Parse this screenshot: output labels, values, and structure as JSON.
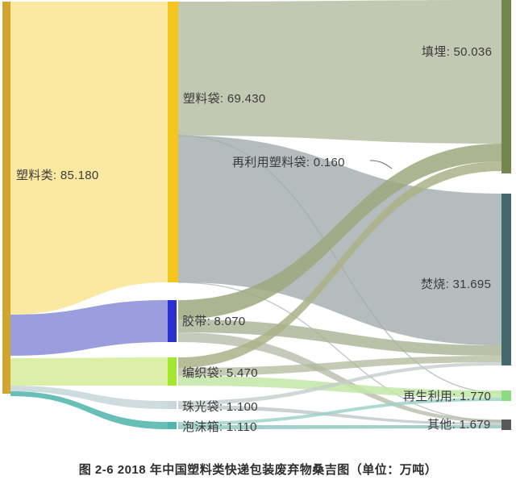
{
  "caption": "图 2-6 2018 年中国塑料类快递包装废弃物桑吉图（单位：万吨）",
  "chart_data": {
    "type": "sankey",
    "title": "图 2-6 2018 年中国塑料类快递包装废弃物桑吉图",
    "unit": "万吨",
    "nodes": [
      {
        "id": "塑料类",
        "label": "塑料类",
        "value": 85.18,
        "display": "塑料类: 85.180",
        "column": 0,
        "color": "#D2A62E"
      },
      {
        "id": "塑料袋",
        "label": "塑料袋",
        "value": 69.43,
        "display": "塑料袋: 69.430",
        "column": 1,
        "color": "#F3C51D"
      },
      {
        "id": "再利用塑料袋",
        "label": "再利用塑料袋",
        "value": 0.16,
        "display": "再利用塑料袋: 0.160",
        "column": 1,
        "color": "#AEB8A4"
      },
      {
        "id": "胶带",
        "label": "胶带",
        "value": 8.07,
        "display": "胶带: 8.070",
        "column": 1,
        "color": "#2B31CE"
      },
      {
        "id": "编织袋",
        "label": "编织袋",
        "value": 5.47,
        "display": "编织袋: 5.470",
        "column": 1,
        "color": "#A2E82C"
      },
      {
        "id": "珠光袋",
        "label": "珠光袋",
        "value": 1.1,
        "display": "珠光袋: 1.100",
        "column": 1,
        "color": "#C7D7DC"
      },
      {
        "id": "泡沫箱",
        "label": "泡沫箱",
        "value": 1.11,
        "display": "泡沫箱: 1.110",
        "column": 1,
        "color": "#4FB5AD"
      },
      {
        "id": "填埋",
        "label": "填埋",
        "value": 50.036,
        "display": "填埋: 50.036",
        "column": 2,
        "color": "#75854E"
      },
      {
        "id": "焚烧",
        "label": "焚烧",
        "value": 31.695,
        "display": "焚烧: 31.695",
        "column": 2,
        "color": "#44686C"
      },
      {
        "id": "再生利用",
        "label": "再生利用",
        "value": 1.77,
        "display": "再生利用: 1.770",
        "column": 2,
        "color": "#8BDC80"
      },
      {
        "id": "其他",
        "label": "其他",
        "value": 1.679,
        "display": "其他: 1.679",
        "column": 2,
        "color": "#58595B"
      }
    ],
    "links": [
      {
        "source": "塑料类",
        "target": "塑料袋",
        "color": "#FBE9A2"
      },
      {
        "source": "塑料类",
        "target": "胶带",
        "color": "#9B9EDC"
      },
      {
        "source": "塑料类",
        "target": "编织袋",
        "color": "#DBF0A6"
      },
      {
        "source": "塑料类",
        "target": "珠光袋",
        "color": "#C9D8DD"
      },
      {
        "source": "塑料类",
        "target": "泡沫箱",
        "color": "#57B8B0"
      },
      {
        "source": "塑料袋",
        "target": "填埋",
        "color": "#C2C8B2"
      },
      {
        "source": "塑料袋",
        "target": "焚烧",
        "color": "#B4BCBD"
      },
      {
        "source": "塑料袋",
        "target": "再利用塑料袋",
        "color": "#9FAF9F"
      },
      {
        "source": "塑料袋",
        "target": "其他",
        "color": "#A8B0B0"
      },
      {
        "source": "胶带",
        "target": "填埋",
        "color": "#9EA87E"
      },
      {
        "source": "胶带",
        "target": "焚烧",
        "color": "#A9B193"
      },
      {
        "source": "胶带",
        "target": "其他",
        "color": "#ADB4A0"
      },
      {
        "source": "编织袋",
        "target": "填埋",
        "color": "#AAB286"
      },
      {
        "source": "编织袋",
        "target": "焚烧",
        "color": "#B0B89A"
      },
      {
        "source": "编织袋",
        "target": "再生利用",
        "color": "#C3E6A6"
      },
      {
        "source": "珠光袋",
        "target": "焚烧",
        "color": "#C3CDCD"
      },
      {
        "source": "珠光袋",
        "target": "其他",
        "color": "#BEC7C9"
      },
      {
        "source": "泡沫箱",
        "target": "再生利用",
        "color": "#9AD0C8"
      },
      {
        "source": "泡沫箱",
        "target": "其他",
        "color": "#8CC4BE"
      }
    ]
  }
}
